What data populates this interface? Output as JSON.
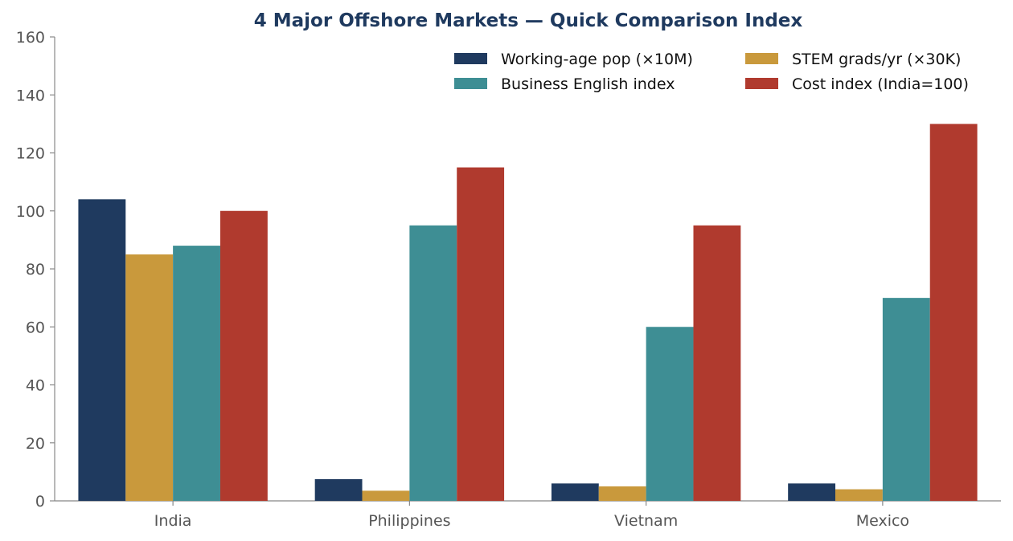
{
  "chart_data": {
    "type": "bar",
    "title": "4 Major Offshore Markets — Quick Comparison Index",
    "xlabel": "",
    "ylabel": "",
    "categories": [
      "India",
      "Philippines",
      "Vietnam",
      "Mexico"
    ],
    "series": [
      {
        "name": "Working-age pop (×10M)",
        "color": "#1f3a5f",
        "values": [
          104,
          7.5,
          6,
          6
        ]
      },
      {
        "name": "STEM grads/yr (×30K)",
        "color": "#c9993c",
        "values": [
          85,
          3.5,
          5,
          4
        ]
      },
      {
        "name": "Business English index",
        "color": "#3e8e94",
        "values": [
          88,
          95,
          60,
          70
        ]
      },
      {
        "name": "Cost index (India=100)",
        "color": "#b03a2e",
        "values": [
          100,
          115,
          95,
          130
        ]
      }
    ],
    "ylim": [
      0,
      160
    ],
    "yticks": [
      0,
      20,
      40,
      60,
      80,
      100,
      120,
      140,
      160
    ],
    "grid": false,
    "legend_position": "top-right",
    "legend_columns": 2,
    "title_color": "#1f3a5f"
  }
}
